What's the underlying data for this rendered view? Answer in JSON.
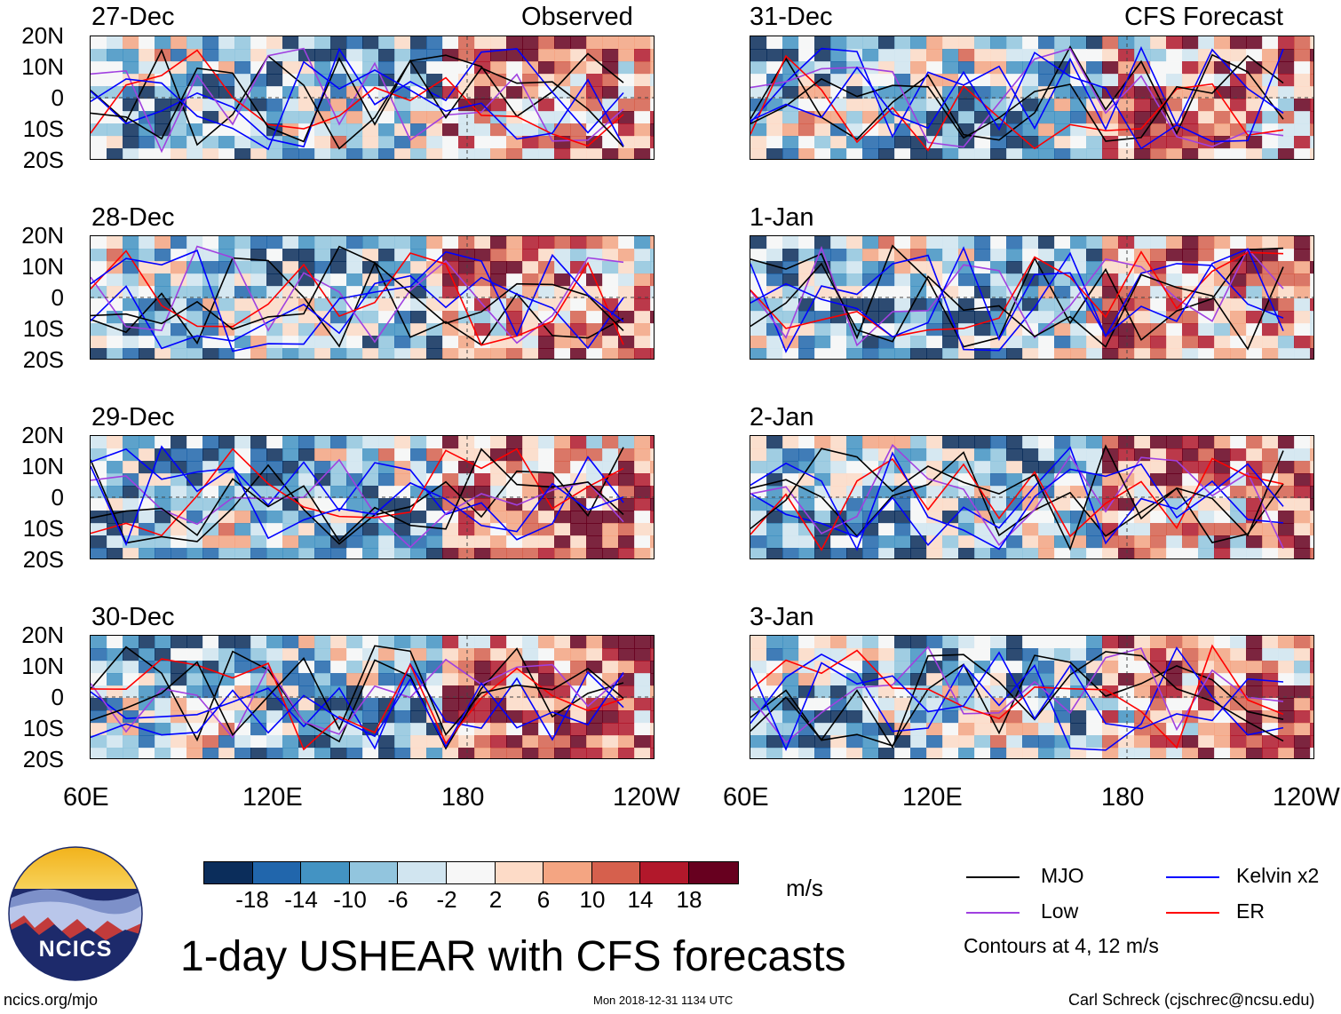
{
  "header": {
    "observed_label": "Observed",
    "forecast_label": "CFS Forecast"
  },
  "panels": [
    {
      "date": "27-Dec",
      "kind": "observed"
    },
    {
      "date": "28-Dec",
      "kind": "observed"
    },
    {
      "date": "29-Dec",
      "kind": "observed"
    },
    {
      "date": "30-Dec",
      "kind": "observed"
    },
    {
      "date": "31-Dec",
      "kind": "forecast"
    },
    {
      "date": "1-Jan",
      "kind": "forecast"
    },
    {
      "date": "2-Jan",
      "kind": "forecast"
    },
    {
      "date": "3-Jan",
      "kind": "forecast"
    }
  ],
  "axes": {
    "lat_labels": [
      "20N",
      "10N",
      "0",
      "10S",
      "20S"
    ],
    "lon_labels": [
      "60E",
      "120E",
      "180",
      "120W"
    ]
  },
  "colorbar": {
    "colors": [
      "#0b2d5b",
      "#2166ac",
      "#4393c3",
      "#92c5de",
      "#d1e5f0",
      "#f7f7f7",
      "#fddbc7",
      "#f4a582",
      "#d6604d",
      "#b2182b",
      "#67001f"
    ],
    "ticks": [
      "-18",
      "-14",
      "-10",
      "-6",
      "-2",
      "2",
      "6",
      "10",
      "14",
      "18"
    ],
    "units": "m/s"
  },
  "legend": {
    "items": [
      {
        "label": "MJO",
        "color": "#000000"
      },
      {
        "label": "Kelvin x2",
        "color": "#0000ff"
      },
      {
        "label": "Low",
        "color": "#a040e0"
      },
      {
        "label": "ER",
        "color": "#ff0000"
      }
    ],
    "note": "Contours at 4, 12 m/s"
  },
  "logo": {
    "text": "NCICS"
  },
  "title": "1-day USHEAR with CFS forecasts",
  "footer": {
    "left": "ncics.org/mjo",
    "center": "Mon 2018-12-31 1134 UTC",
    "right": "Carl Schreck (cjschrec@ncsu.edu)"
  }
}
